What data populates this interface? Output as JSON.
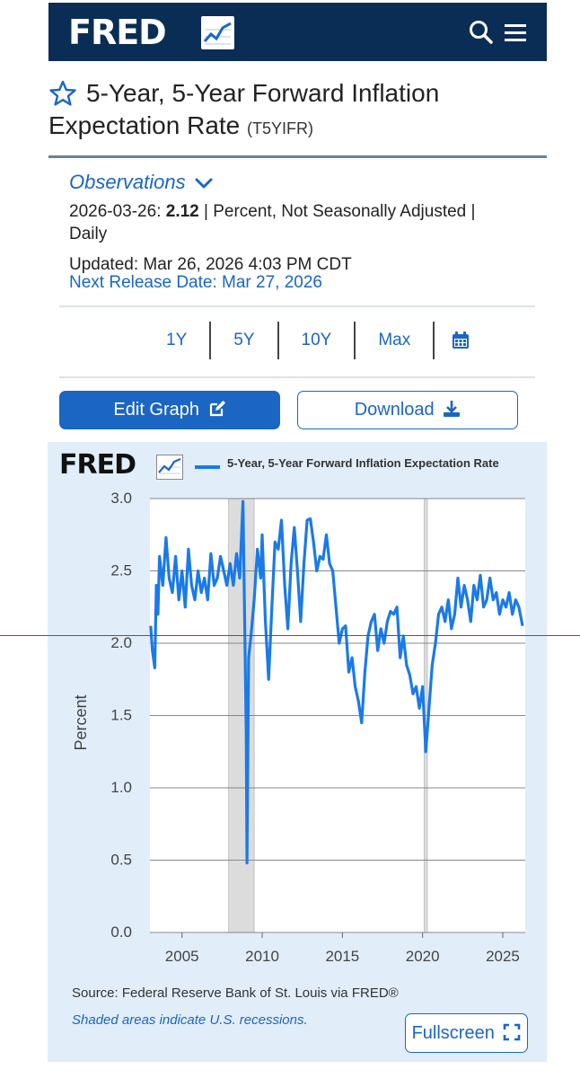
{
  "header": {
    "logo_text": "FRED",
    "colors": {
      "bar": "#0a2d55",
      "accent": "#1a66c2"
    }
  },
  "series": {
    "title_line1": "5-Year, 5-Year Forward Inflation",
    "title_line2": "Expectation Rate",
    "series_id": "(T5YIFR)"
  },
  "observations": {
    "heading": "Observations",
    "date": "2026-03-26:",
    "value": "2.12",
    "units": "| Percent, Not Seasonally Adjusted |",
    "frequency": "Daily",
    "updated": "Updated: Mar 26, 2026 4:03 PM CDT",
    "next_release": "Next Release Date: Mar 27, 2026"
  },
  "ranges": [
    "1Y",
    "5Y",
    "10Y",
    "Max"
  ],
  "buttons": {
    "edit": "Edit Graph",
    "download": "Download",
    "fullscreen": "Fullscreen"
  },
  "footer": {
    "source": "Source: Federal Reserve Bank of St. Louis via FRED®",
    "shaded_note": "Shaded areas indicate U.S. recessions."
  },
  "chart_data": {
    "type": "line",
    "title": "",
    "ylabel": "Percent",
    "xlabel": "",
    "ylim": [
      0,
      3
    ],
    "xlim": [
      2003.0,
      2026.4
    ],
    "yticks": [
      "0.0",
      "0.5",
      "1.0",
      "1.5",
      "2.0",
      "2.5",
      "3.0"
    ],
    "xticks": [
      "2005",
      "2010",
      "2015",
      "2020",
      "2025"
    ],
    "grid": true,
    "legend": "top",
    "recessions": [
      [
        2007.9,
        2009.5
      ],
      [
        2020.1,
        2020.3
      ]
    ],
    "series": [
      {
        "name": "5-Year, 5-Year Forward Inflation Expectation Rate",
        "color": "#1a7ae8",
        "x": [
          2003.05,
          2003.15,
          2003.3,
          2003.4,
          2003.5,
          2003.6,
          2003.8,
          2004.0,
          2004.2,
          2004.4,
          2004.6,
          2004.8,
          2005.0,
          2005.2,
          2005.4,
          2005.6,
          2005.8,
          2006.0,
          2006.2,
          2006.4,
          2006.6,
          2006.8,
          2007.0,
          2007.2,
          2007.4,
          2007.6,
          2007.8,
          2008.0,
          2008.2,
          2008.4,
          2008.6,
          2008.8,
          2008.9,
          2009.0,
          2009.05,
          2009.15,
          2009.3,
          2009.5,
          2009.7,
          2009.9,
          2010.0,
          2010.2,
          2010.4,
          2010.6,
          2010.8,
          2011.0,
          2011.2,
          2011.4,
          2011.6,
          2011.8,
          2012.0,
          2012.2,
          2012.4,
          2012.6,
          2012.8,
          2013.0,
          2013.2,
          2013.4,
          2013.6,
          2013.8,
          2014.0,
          2014.2,
          2014.4,
          2014.6,
          2014.8,
          2015.0,
          2015.2,
          2015.4,
          2015.6,
          2015.8,
          2016.0,
          2016.2,
          2016.4,
          2016.6,
          2016.8,
          2017.0,
          2017.2,
          2017.4,
          2017.6,
          2017.8,
          2018.0,
          2018.2,
          2018.4,
          2018.6,
          2018.8,
          2019.0,
          2019.2,
          2019.4,
          2019.6,
          2019.8,
          2020.0,
          2020.2,
          2020.4,
          2020.6,
          2020.8,
          2021.0,
          2021.2,
          2021.4,
          2021.6,
          2021.8,
          2022.0,
          2022.2,
          2022.4,
          2022.6,
          2022.8,
          2023.0,
          2023.2,
          2023.4,
          2023.6,
          2023.8,
          2024.0,
          2024.2,
          2024.4,
          2024.6,
          2024.8,
          2025.0,
          2025.2,
          2025.4,
          2025.6,
          2025.8,
          2026.0,
          2026.23
        ],
        "values": [
          2.12,
          1.95,
          1.83,
          2.4,
          2.2,
          2.6,
          2.4,
          2.73,
          2.45,
          2.35,
          2.6,
          2.3,
          2.5,
          2.25,
          2.65,
          2.4,
          2.3,
          2.5,
          2.35,
          2.45,
          2.3,
          2.62,
          2.4,
          2.45,
          2.6,
          2.5,
          2.4,
          2.55,
          2.4,
          2.62,
          2.45,
          2.98,
          2.2,
          1.4,
          0.48,
          1.9,
          2.05,
          2.3,
          2.65,
          2.45,
          2.75,
          2.15,
          1.75,
          2.25,
          2.7,
          2.65,
          2.85,
          2.4,
          2.1,
          2.55,
          2.8,
          2.5,
          2.15,
          2.55,
          2.85,
          2.86,
          2.7,
          2.5,
          2.6,
          2.58,
          2.75,
          2.55,
          2.5,
          2.25,
          2.0,
          2.1,
          2.12,
          1.8,
          1.9,
          1.7,
          1.6,
          1.45,
          1.8,
          2.05,
          2.15,
          2.2,
          1.95,
          2.1,
          2.0,
          2.15,
          2.22,
          2.2,
          2.25,
          1.9,
          2.05,
          1.85,
          1.78,
          1.65,
          1.7,
          1.55,
          1.7,
          1.25,
          1.55,
          1.85,
          2.0,
          2.2,
          2.25,
          2.15,
          2.3,
          2.1,
          2.2,
          2.45,
          2.25,
          2.4,
          2.3,
          2.15,
          2.4,
          2.3,
          2.47,
          2.25,
          2.3,
          2.45,
          2.3,
          2.35,
          2.2,
          2.3,
          2.25,
          2.35,
          2.2,
          2.3,
          2.25,
          2.12
        ]
      }
    ]
  }
}
